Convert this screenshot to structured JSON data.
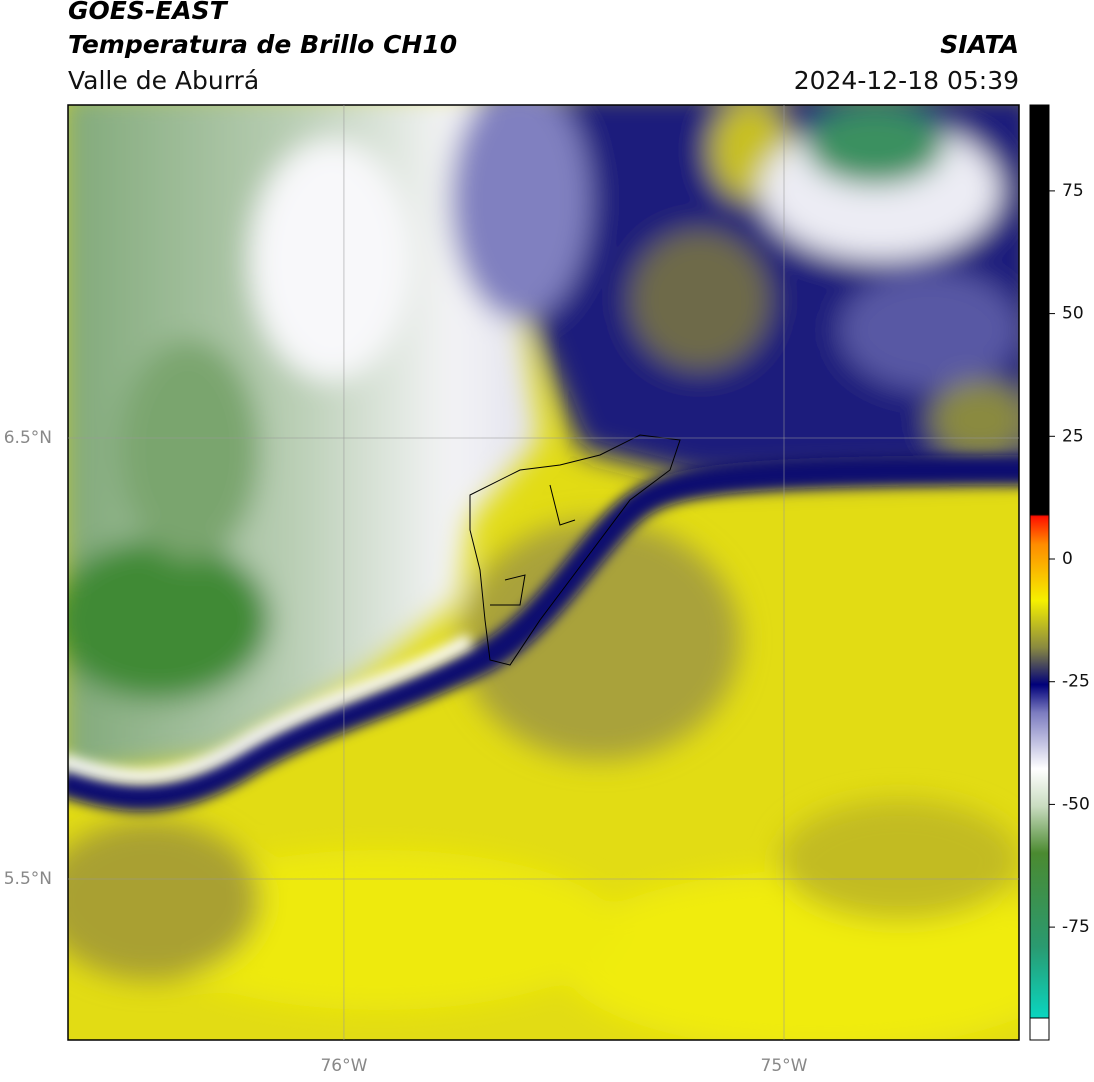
{
  "header": {
    "title": "GOES-EAST",
    "subtitle": "Temperatura de Brillo CH10",
    "region": "Valle de Aburrá",
    "source": "SIATA",
    "datetime": "2024-12-18 05:39"
  },
  "map": {
    "xlim": [
      -76.627,
      -74.466
    ],
    "ylim": [
      5.135,
      7.255
    ],
    "xticks": [
      {
        "value": -76,
        "label": "76°W"
      },
      {
        "value": -75,
        "label": "75°W"
      }
    ],
    "yticks": [
      {
        "value": 6.5,
        "label": "6.5°N"
      },
      {
        "value": 5.5,
        "label": "5.5°N"
      }
    ],
    "grid": true
  },
  "colorbar": {
    "ylim": [
      -98,
      92.5
    ],
    "yticks": [
      75,
      50,
      25,
      0,
      -25,
      -50,
      -75
    ]
  }
}
